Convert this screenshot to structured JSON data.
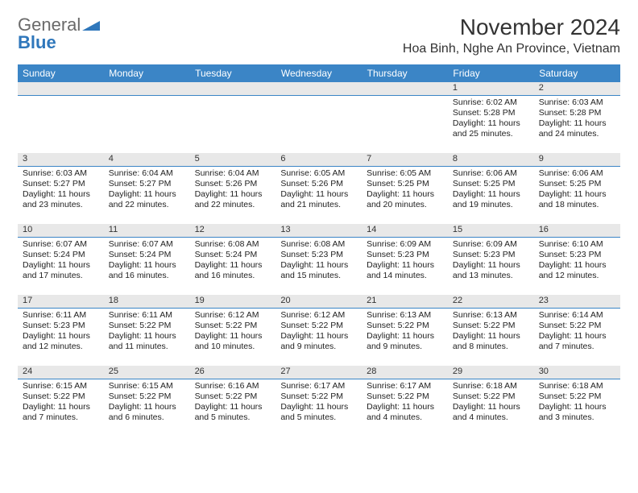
{
  "logo": {
    "general": "General",
    "blue": "Blue"
  },
  "title": "November 2024",
  "location": "Hoa Binh, Nghe An Province, Vietnam",
  "colors": {
    "header_bg": "#3b85c6",
    "header_fg": "#ffffff",
    "daynum_bg": "#e8e8e8",
    "rule": "#3b85c6",
    "logo_gray": "#6a6a6a",
    "logo_blue": "#2f77bb"
  },
  "weekdays": [
    "Sunday",
    "Monday",
    "Tuesday",
    "Wednesday",
    "Thursday",
    "Friday",
    "Saturday"
  ],
  "weeks": [
    [
      null,
      null,
      null,
      null,
      null,
      {
        "n": "1",
        "sunrise": "Sunrise: 6:02 AM",
        "sunset": "Sunset: 5:28 PM",
        "daylight": "Daylight: 11 hours and 25 minutes."
      },
      {
        "n": "2",
        "sunrise": "Sunrise: 6:03 AM",
        "sunset": "Sunset: 5:28 PM",
        "daylight": "Daylight: 11 hours and 24 minutes."
      }
    ],
    [
      {
        "n": "3",
        "sunrise": "Sunrise: 6:03 AM",
        "sunset": "Sunset: 5:27 PM",
        "daylight": "Daylight: 11 hours and 23 minutes."
      },
      {
        "n": "4",
        "sunrise": "Sunrise: 6:04 AM",
        "sunset": "Sunset: 5:27 PM",
        "daylight": "Daylight: 11 hours and 22 minutes."
      },
      {
        "n": "5",
        "sunrise": "Sunrise: 6:04 AM",
        "sunset": "Sunset: 5:26 PM",
        "daylight": "Daylight: 11 hours and 22 minutes."
      },
      {
        "n": "6",
        "sunrise": "Sunrise: 6:05 AM",
        "sunset": "Sunset: 5:26 PM",
        "daylight": "Daylight: 11 hours and 21 minutes."
      },
      {
        "n": "7",
        "sunrise": "Sunrise: 6:05 AM",
        "sunset": "Sunset: 5:25 PM",
        "daylight": "Daylight: 11 hours and 20 minutes."
      },
      {
        "n": "8",
        "sunrise": "Sunrise: 6:06 AM",
        "sunset": "Sunset: 5:25 PM",
        "daylight": "Daylight: 11 hours and 19 minutes."
      },
      {
        "n": "9",
        "sunrise": "Sunrise: 6:06 AM",
        "sunset": "Sunset: 5:25 PM",
        "daylight": "Daylight: 11 hours and 18 minutes."
      }
    ],
    [
      {
        "n": "10",
        "sunrise": "Sunrise: 6:07 AM",
        "sunset": "Sunset: 5:24 PM",
        "daylight": "Daylight: 11 hours and 17 minutes."
      },
      {
        "n": "11",
        "sunrise": "Sunrise: 6:07 AM",
        "sunset": "Sunset: 5:24 PM",
        "daylight": "Daylight: 11 hours and 16 minutes."
      },
      {
        "n": "12",
        "sunrise": "Sunrise: 6:08 AM",
        "sunset": "Sunset: 5:24 PM",
        "daylight": "Daylight: 11 hours and 16 minutes."
      },
      {
        "n": "13",
        "sunrise": "Sunrise: 6:08 AM",
        "sunset": "Sunset: 5:23 PM",
        "daylight": "Daylight: 11 hours and 15 minutes."
      },
      {
        "n": "14",
        "sunrise": "Sunrise: 6:09 AM",
        "sunset": "Sunset: 5:23 PM",
        "daylight": "Daylight: 11 hours and 14 minutes."
      },
      {
        "n": "15",
        "sunrise": "Sunrise: 6:09 AM",
        "sunset": "Sunset: 5:23 PM",
        "daylight": "Daylight: 11 hours and 13 minutes."
      },
      {
        "n": "16",
        "sunrise": "Sunrise: 6:10 AM",
        "sunset": "Sunset: 5:23 PM",
        "daylight": "Daylight: 11 hours and 12 minutes."
      }
    ],
    [
      {
        "n": "17",
        "sunrise": "Sunrise: 6:11 AM",
        "sunset": "Sunset: 5:23 PM",
        "daylight": "Daylight: 11 hours and 12 minutes."
      },
      {
        "n": "18",
        "sunrise": "Sunrise: 6:11 AM",
        "sunset": "Sunset: 5:22 PM",
        "daylight": "Daylight: 11 hours and 11 minutes."
      },
      {
        "n": "19",
        "sunrise": "Sunrise: 6:12 AM",
        "sunset": "Sunset: 5:22 PM",
        "daylight": "Daylight: 11 hours and 10 minutes."
      },
      {
        "n": "20",
        "sunrise": "Sunrise: 6:12 AM",
        "sunset": "Sunset: 5:22 PM",
        "daylight": "Daylight: 11 hours and 9 minutes."
      },
      {
        "n": "21",
        "sunrise": "Sunrise: 6:13 AM",
        "sunset": "Sunset: 5:22 PM",
        "daylight": "Daylight: 11 hours and 9 minutes."
      },
      {
        "n": "22",
        "sunrise": "Sunrise: 6:13 AM",
        "sunset": "Sunset: 5:22 PM",
        "daylight": "Daylight: 11 hours and 8 minutes."
      },
      {
        "n": "23",
        "sunrise": "Sunrise: 6:14 AM",
        "sunset": "Sunset: 5:22 PM",
        "daylight": "Daylight: 11 hours and 7 minutes."
      }
    ],
    [
      {
        "n": "24",
        "sunrise": "Sunrise: 6:15 AM",
        "sunset": "Sunset: 5:22 PM",
        "daylight": "Daylight: 11 hours and 7 minutes."
      },
      {
        "n": "25",
        "sunrise": "Sunrise: 6:15 AM",
        "sunset": "Sunset: 5:22 PM",
        "daylight": "Daylight: 11 hours and 6 minutes."
      },
      {
        "n": "26",
        "sunrise": "Sunrise: 6:16 AM",
        "sunset": "Sunset: 5:22 PM",
        "daylight": "Daylight: 11 hours and 5 minutes."
      },
      {
        "n": "27",
        "sunrise": "Sunrise: 6:17 AM",
        "sunset": "Sunset: 5:22 PM",
        "daylight": "Daylight: 11 hours and 5 minutes."
      },
      {
        "n": "28",
        "sunrise": "Sunrise: 6:17 AM",
        "sunset": "Sunset: 5:22 PM",
        "daylight": "Daylight: 11 hours and 4 minutes."
      },
      {
        "n": "29",
        "sunrise": "Sunrise: 6:18 AM",
        "sunset": "Sunset: 5:22 PM",
        "daylight": "Daylight: 11 hours and 4 minutes."
      },
      {
        "n": "30",
        "sunrise": "Sunrise: 6:18 AM",
        "sunset": "Sunset: 5:22 PM",
        "daylight": "Daylight: 11 hours and 3 minutes."
      }
    ]
  ]
}
